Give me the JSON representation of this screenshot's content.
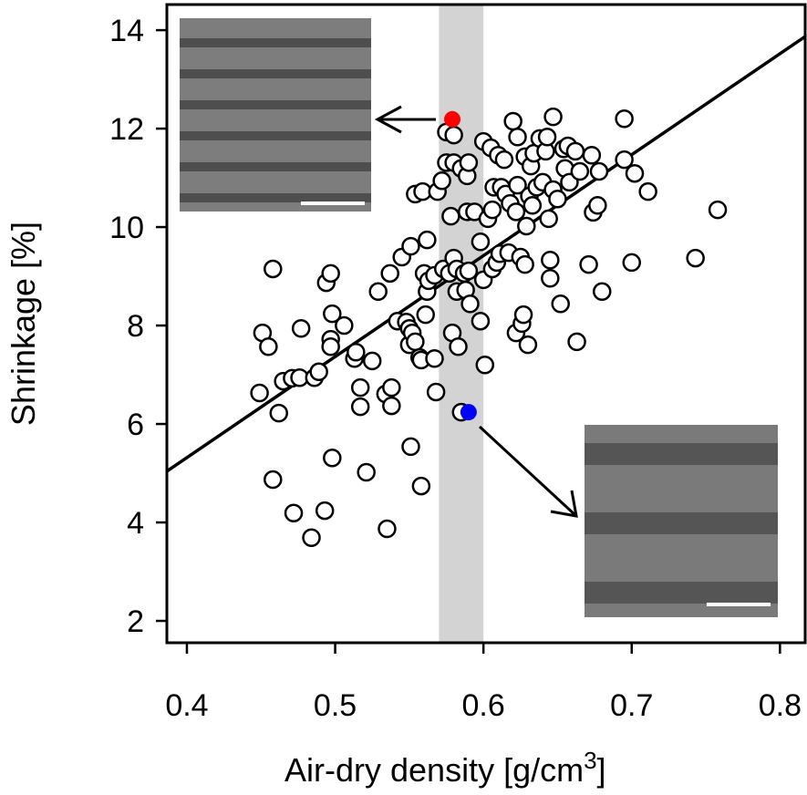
{
  "chart_data": {
    "type": "scatter",
    "xlabel": [
      "Air-dry density [g/cm",
      "3",
      "]"
    ],
    "ylabel": "Shrinkage [%]",
    "xlim": [
      0.3865,
      0.817
    ],
    "ylim": [
      1.556,
      14.52
    ],
    "xticks": [
      0.4,
      0.5,
      0.6,
      0.7,
      0.8
    ],
    "yticks": [
      2,
      4,
      6,
      8,
      10,
      12,
      14
    ],
    "band": {
      "x": [
        0.57,
        0.6
      ],
      "color": "#d3d3d3"
    },
    "fit_line": {
      "x": [
        0.3865,
        0.817
      ],
      "values": [
        5.04,
        13.87
      ],
      "color": "#000000"
    },
    "series": [
      {
        "color": "#ffffff",
        "x": [
          0.449,
          0.451,
          0.455,
          0.458,
          0.458,
          0.462,
          0.465,
          0.471,
          0.472,
          0.477,
          0.476,
          0.484,
          0.486,
          0.489,
          0.493,
          0.494,
          0.497,
          0.497,
          0.497,
          0.498,
          0.498,
          0.506,
          0.513,
          0.514,
          0.517,
          0.517,
          0.521,
          0.525,
          0.529,
          0.534,
          0.535,
          0.537,
          0.538,
          0.538,
          0.542,
          0.545,
          0.548,
          0.55,
          0.55,
          0.551,
          0.552,
          0.551,
          0.554,
          0.554,
          0.557,
          0.558,
          0.558,
          0.559,
          0.56,
          0.561,
          0.562,
          0.562,
          0.563,
          0.567,
          0.567,
          0.568,
          0.569,
          0.572,
          0.573,
          0.575,
          0.575,
          0.577,
          0.578,
          0.579,
          0.58,
          0.58,
          0.58,
          0.582,
          0.582,
          0.583,
          0.585,
          0.585,
          0.587,
          0.588,
          0.589,
          0.59,
          0.59,
          0.589,
          0.591,
          0.594,
          0.598,
          0.598,
          0.6,
          0.601,
          0.6,
          0.603,
          0.605,
          0.606,
          0.606,
          0.607,
          0.609,
          0.61,
          0.611,
          0.612,
          0.614,
          0.615,
          0.617,
          0.618,
          0.62,
          0.622,
          0.622,
          0.623,
          0.623,
          0.625,
          0.626,
          0.627,
          0.628,
          0.628,
          0.629,
          0.63,
          0.631,
          0.632,
          0.633,
          0.634,
          0.636,
          0.638,
          0.64,
          0.642,
          0.643,
          0.644,
          0.645,
          0.645,
          0.647,
          0.647,
          0.65,
          0.652,
          0.654,
          0.655,
          0.657,
          0.658,
          0.662,
          0.663,
          0.665,
          0.671,
          0.673,
          0.674,
          0.677,
          0.678,
          0.68,
          0.695,
          0.695,
          0.7,
          0.702,
          0.711,
          0.743,
          0.758
        ],
        "values": [
          6.63,
          7.85,
          7.57,
          9.15,
          4.87,
          6.22,
          6.87,
          6.93,
          4.19,
          7.94,
          6.94,
          3.69,
          6.94,
          7.06,
          4.24,
          8.87,
          9.06,
          7.72,
          7.57,
          8.24,
          5.31,
          8.0,
          7.33,
          7.46,
          6.35,
          6.74,
          5.02,
          7.28,
          8.69,
          6.61,
          3.87,
          9.06,
          6.37,
          6.74,
          8.09,
          9.39,
          8.07,
          7.94,
          7.61,
          9.61,
          7.85,
          5.54,
          10.67,
          7.67,
          7.35,
          4.74,
          7.3,
          10.72,
          9.06,
          8.22,
          9.74,
          8.69,
          8.91,
          9.02,
          7.33,
          6.65,
          10.72,
          10.94,
          9.15,
          11.93,
          11.31,
          9.06,
          10.22,
          7.85,
          11.87,
          9.37,
          11.31,
          9.15,
          8.69,
          7.57,
          11.19,
          6.24,
          9.06,
          8.72,
          11.04,
          11.31,
          9.11,
          10.31,
          8.44,
          10.31,
          9.7,
          8.09,
          11.74,
          7.2,
          8.93,
          10.17,
          11.61,
          10.35,
          9.15,
          10.81,
          9.28,
          11.46,
          9.46,
          10.81,
          11.37,
          10.67,
          9.48,
          10.48,
          12.15,
          10.31,
          7.85,
          11.83,
          10.85,
          9.39,
          8.04,
          8.22,
          11.43,
          9.24,
          10.02,
          7.61,
          10.63,
          11.24,
          10.44,
          11.5,
          10.81,
          11.8,
          10.91,
          11.54,
          11.83,
          10.17,
          9.33,
          8.96,
          12.24,
          10.76,
          10.57,
          8.44,
          11.59,
          11.19,
          11.65,
          10.91,
          11.54,
          7.67,
          11.13,
          9.24,
          11.46,
          10.3,
          10.44,
          11.13,
          8.69,
          12.2,
          11.37,
          9.28,
          11.09,
          10.72,
          9.37,
          10.35
        ]
      },
      {
        "color": "#ff0000",
        "x": [
          0.579
        ],
        "values": [
          12.19
        ]
      },
      {
        "color": "#0000ff",
        "x": [
          0.59
        ],
        "values": [
          6.24
        ]
      }
    ]
  }
}
